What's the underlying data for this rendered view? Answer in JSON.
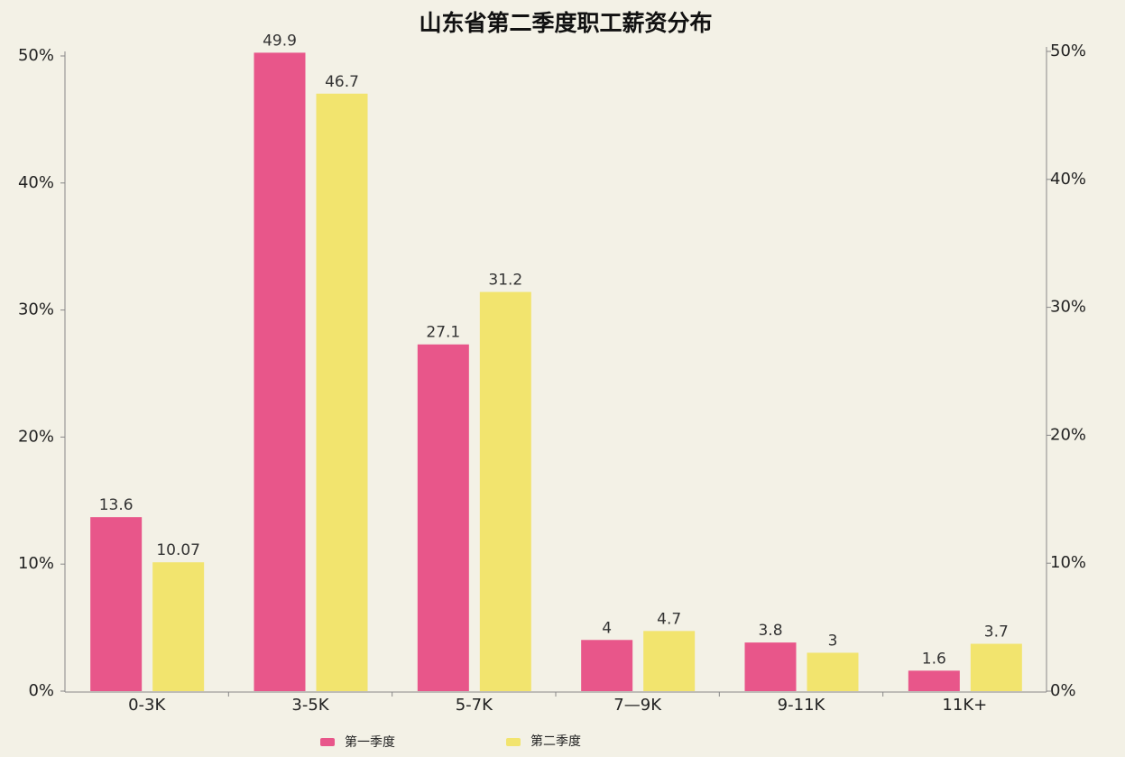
{
  "chart_data": {
    "type": "bar",
    "title": "山东省第二季度职工薪资分布",
    "categories": [
      "0-3K",
      "3-5K",
      "5-7K",
      "7—9K",
      "9-11K",
      "11K+"
    ],
    "series": [
      {
        "name": "第一季度",
        "color": "#e8568a",
        "axis": "y2",
        "values": [
          13.6,
          49.9,
          27.1,
          4,
          3.8,
          1.6
        ]
      },
      {
        "name": "第二季度",
        "color": "#f2e46e",
        "axis": "y2",
        "values": [
          10.07,
          46.7,
          31.2,
          4.7,
          3,
          3.7
        ]
      }
    ],
    "ylim": [
      0,
      50
    ],
    "yticks": [
      {
        "value": 0,
        "label": "0%"
      },
      {
        "value": 10,
        "label": "10%"
      },
      {
        "value": 20,
        "label": "20%"
      },
      {
        "value": 30,
        "label": "30%"
      },
      {
        "value": 40,
        "label": "40%"
      },
      {
        "value": 50,
        "label": "50%"
      }
    ],
    "y2lim": [
      0,
      50
    ],
    "y2ticks": [
      {
        "value": 0,
        "label": "0%"
      },
      {
        "value": 10,
        "label": "10%"
      },
      {
        "value": 20,
        "label": "20%"
      },
      {
        "value": 30,
        "label": "30%"
      },
      {
        "value": 40,
        "label": "40%"
      },
      {
        "value": 50,
        "label": "50%"
      }
    ],
    "legend": "bottom"
  }
}
